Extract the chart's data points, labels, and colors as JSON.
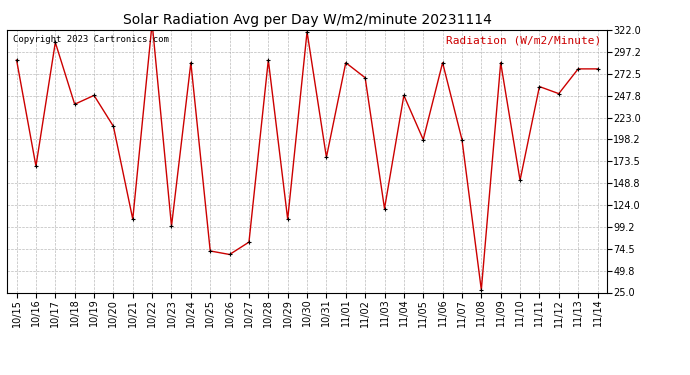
{
  "title": "Solar Radiation Avg per Day W/m2/minute 20231114",
  "copyright": "Copyright 2023 Cartronics.com",
  "legend_label": "Radiation (W/m2/Minute)",
  "dates": [
    "10/15",
    "10/16",
    "10/17",
    "10/18",
    "10/19",
    "10/20",
    "10/21",
    "10/22",
    "10/23",
    "10/24",
    "10/25",
    "10/26",
    "10/27",
    "10/28",
    "10/29",
    "10/30",
    "10/31",
    "11/01",
    "11/02",
    "11/03",
    "11/04",
    "11/05",
    "11/06",
    "11/07",
    "11/08",
    "11/09",
    "11/10",
    "11/11",
    "11/12",
    "11/13",
    "11/14"
  ],
  "values": [
    288,
    168,
    308,
    238,
    248,
    213,
    108,
    330,
    100,
    285,
    72,
    68,
    82,
    288,
    108,
    320,
    178,
    285,
    268,
    120,
    248,
    198,
    285,
    198,
    28,
    285,
    152,
    258,
    250,
    278,
    278
  ],
  "ylim": [
    25.0,
    322.0
  ],
  "yticks": [
    25.0,
    49.8,
    74.5,
    99.2,
    124.0,
    148.8,
    173.5,
    198.2,
    223.0,
    247.8,
    272.5,
    297.2,
    322.0
  ],
  "line_color": "#cc0000",
  "marker_color": "#000000",
  "bg_color": "#ffffff",
  "grid_color": "#aaaaaa",
  "title_fontsize": 10,
  "copyright_fontsize": 6.5,
  "legend_fontsize": 8,
  "tick_fontsize": 7
}
